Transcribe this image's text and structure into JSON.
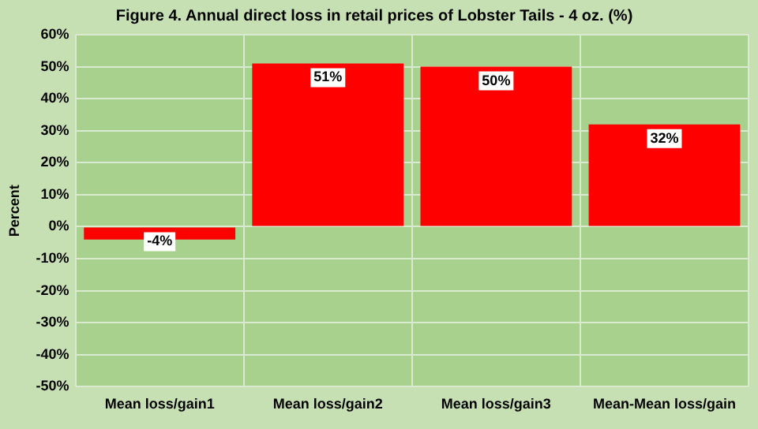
{
  "chart_data": {
    "type": "bar",
    "title": "Figure 4. Annual direct loss in retail prices of Lobster Tails - 4 oz. (%)",
    "ylabel": "Percent",
    "categories": [
      "Mean loss/gain1",
      "Mean loss/gain2",
      "Mean loss/gain3",
      "Mean-Mean loss/gain"
    ],
    "values": [
      -4,
      51,
      50,
      32
    ],
    "value_labels": [
      "-4%",
      "51%",
      "50%",
      "32%"
    ],
    "color": "#ff0000",
    "ylim": [
      -50,
      60
    ],
    "yticks": [
      {
        "value": -50,
        "label": "-50%"
      },
      {
        "value": -40,
        "label": "-40%"
      },
      {
        "value": -30,
        "label": "-30%"
      },
      {
        "value": -20,
        "label": "-20%"
      },
      {
        "value": -10,
        "label": "-10%"
      },
      {
        "value": 0,
        "label": "0%"
      },
      {
        "value": 10,
        "label": "10%"
      },
      {
        "value": 20,
        "label": "20%"
      },
      {
        "value": 30,
        "label": "30%"
      },
      {
        "value": 40,
        "label": "40%"
      },
      {
        "value": 50,
        "label": "50%"
      },
      {
        "value": 60,
        "label": "60%"
      }
    ],
    "grid": true
  }
}
